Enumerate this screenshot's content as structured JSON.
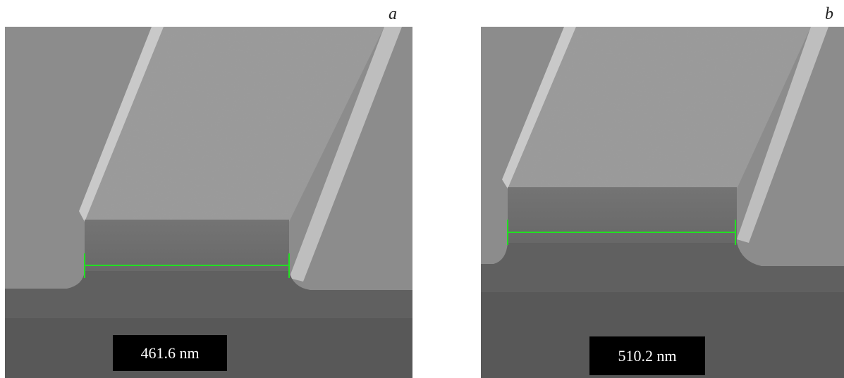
{
  "panels": [
    {
      "label": "a",
      "measurement": "461.6 nm"
    },
    {
      "label": "b",
      "measurement": "510.2 nm"
    }
  ]
}
